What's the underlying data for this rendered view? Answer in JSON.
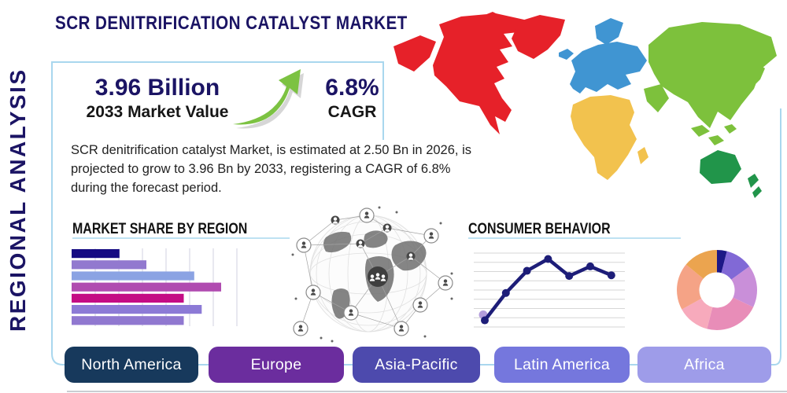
{
  "page": {
    "title": "SCR DENITRIFICATION CATALYST MARKET",
    "side_label": "REGIONAL ANALYSIS"
  },
  "stats": {
    "market_value": "3.96 Billion",
    "market_value_label": "2033 Market Value",
    "cagr_value": "6.8%",
    "cagr_label": "CAGR"
  },
  "description": "SCR denitrification catalyst Market, is estimated at 2.50 Bn in 2026, is projected to grow to 3.96 Bn by 2033, registering a CAGR of 6.8% during the forecast period.",
  "sections": {
    "market_share": "MARKET SHARE BY REGION",
    "consumer_behavior": "CONSUMER BEHAVIOR"
  },
  "region_buttons": [
    {
      "label": "North America",
      "color": "#17395c"
    },
    {
      "label": "Europe",
      "color": "#6b2d9e"
    },
    {
      "label": "Asia-Pacific",
      "color": "#4d4aad"
    },
    {
      "label": "Latin America",
      "color": "#7577dd"
    },
    {
      "label": "Africa",
      "color": "#9e9ce9"
    }
  ],
  "map": {
    "region_colors": {
      "north_america": "#e62129",
      "greenland": "#e62129",
      "south_america": "#e8871e",
      "europe": "#4095d2",
      "iceland": "#4095d2",
      "africa": "#f2c24e",
      "asia": "#7dc13c",
      "australia": "#21954a"
    }
  },
  "accent": {
    "navy": "#1b1464",
    "line_blue": "#a9d7ee",
    "arrow_green": "#7cc242",
    "arrow_shadow": "#aeaeae"
  },
  "chart_data": [
    {
      "id": "market-share-by-region",
      "type": "bar",
      "orientation": "horizontal",
      "title": "MARKET SHARE BY REGION",
      "categories": [
        "",
        "",
        "",
        "",
        "",
        "",
        ""
      ],
      "values": [
        32,
        50,
        82,
        100,
        75,
        87,
        75
      ],
      "units": "relative-share (no axis labels shown)",
      "xlim": [
        0,
        111
      ],
      "grid": "vertical",
      "colors": [
        "#150a82",
        "#9279cf",
        "#8ba3e3",
        "#b04bb0",
        "#c40c84",
        "#8c7ad6",
        "#9078d0"
      ]
    },
    {
      "id": "consumer-behavior",
      "type": "line",
      "title": "CONSUMER BEHAVIOR",
      "x": [
        1,
        2,
        3,
        4,
        5,
        6,
        7
      ],
      "values": [
        9,
        46,
        76,
        92,
        69,
        82,
        70
      ],
      "ylim": [
        0,
        100
      ],
      "grid": "horizontal",
      "color": "#1d1d78",
      "start_dot_color": "#b39ddb",
      "legend": "none"
    },
    {
      "id": "regional-share-donut",
      "type": "pie",
      "subtype": "donut",
      "values": [
        4,
        11,
        17,
        22,
        13,
        19,
        14
      ],
      "units": "percent",
      "colors": [
        "#1c1887",
        "#8169d6",
        "#c98fd9",
        "#e88db8",
        "#f7aabc",
        "#f5a386",
        "#eba44f"
      ],
      "labels": [
        "",
        "",
        "",
        "",
        "",
        "",
        ""
      ]
    }
  ]
}
